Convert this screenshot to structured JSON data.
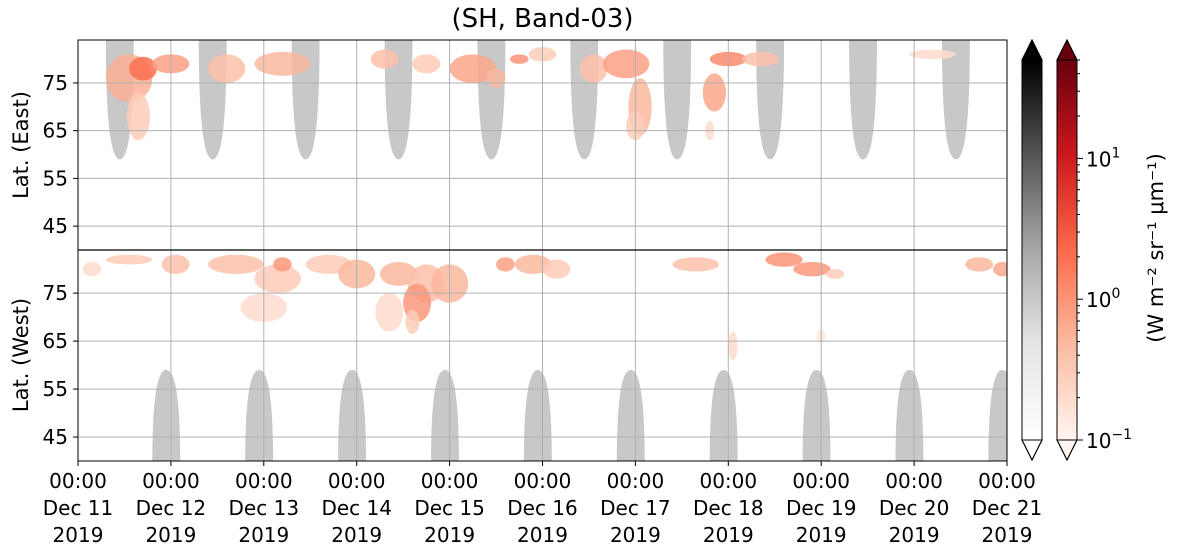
{
  "chart_data": {
    "type": "heatmap",
    "title": "(SH, Band-03)",
    "x_ticks": [
      {
        "time": "00:00",
        "date": "Dec 11",
        "year": "2019"
      },
      {
        "time": "00:00",
        "date": "Dec 12",
        "year": "2019"
      },
      {
        "time": "00:00",
        "date": "Dec 13",
        "year": "2019"
      },
      {
        "time": "00:00",
        "date": "Dec 14",
        "year": "2019"
      },
      {
        "time": "00:00",
        "date": "Dec 15",
        "year": "2019"
      },
      {
        "time": "00:00",
        "date": "Dec 16",
        "year": "2019"
      },
      {
        "time": "00:00",
        "date": "Dec 17",
        "year": "2019"
      },
      {
        "time": "00:00",
        "date": "Dec 18",
        "year": "2019"
      },
      {
        "time": "00:00",
        "date": "Dec 19",
        "year": "2019"
      },
      {
        "time": "00:00",
        "date": "Dec 20",
        "year": "2019"
      },
      {
        "time": "00:00",
        "date": "Dec 21",
        "year": "2019"
      }
    ],
    "x_range": [
      "2019-12-11 00:00",
      "2019-12-21 00:00"
    ],
    "panels": [
      {
        "name": "East",
        "ylabel": "Lat. (East)",
        "y_ticks": [
          "45",
          "55",
          "65",
          "75"
        ],
        "y_range": [
          40,
          84
        ]
      },
      {
        "name": "West",
        "ylabel": "Lat. (West)",
        "y_ticks": [
          "75",
          "65",
          "55",
          "45"
        ],
        "y_range": [
          84,
          40
        ]
      }
    ],
    "grid": true,
    "colorbars": [
      {
        "cmap": "Greys",
        "extend": "both"
      },
      {
        "cmap": "Reds",
        "extend": "both",
        "scale": "log",
        "ticks": [
          {
            "base": "10",
            "exp": "1",
            "value": 10
          },
          {
            "base": "10",
            "exp": "0",
            "value": 1
          },
          {
            "base": "10",
            "exp": "−1",
            "value": 0.1
          }
        ],
        "range": [
          0.1,
          50
        ]
      }
    ],
    "colorbar_label": "(W m⁻² sr⁻¹ μm⁻¹)",
    "daylight_regions": {
      "color": "#c8c8c8",
      "east_centers_days": [
        0.45,
        1.45,
        2.45,
        3.45,
        4.45,
        5.45,
        6.45,
        7.45,
        8.45,
        9.45
      ],
      "west_centers_days": [
        0.95,
        1.95,
        2.95,
        3.95,
        4.95,
        5.95,
        6.95,
        7.95,
        8.95,
        9.95
      ],
      "edge_lat": 84,
      "tip_lat": 59
    },
    "aurora_blobs": [
      {
        "panel": "East",
        "t": 0.55,
        "lat": 76,
        "dt": 0.5,
        "dlat": 10,
        "level": 0.6
      },
      {
        "panel": "East",
        "t": 0.7,
        "lat": 78,
        "dt": 0.3,
        "dlat": 5,
        "level": 2.0
      },
      {
        "panel": "East",
        "t": 0.65,
        "lat": 68,
        "dt": 0.25,
        "dlat": 10,
        "level": 0.3
      },
      {
        "panel": "East",
        "t": 1.0,
        "lat": 79,
        "dt": 0.4,
        "dlat": 4,
        "level": 0.8
      },
      {
        "panel": "East",
        "t": 1.6,
        "lat": 78,
        "dt": 0.4,
        "dlat": 6,
        "level": 0.4
      },
      {
        "panel": "East",
        "t": 2.2,
        "lat": 79,
        "dt": 0.6,
        "dlat": 5,
        "level": 0.5
      },
      {
        "panel": "East",
        "t": 3.3,
        "lat": 80,
        "dt": 0.3,
        "dlat": 4,
        "level": 0.4
      },
      {
        "panel": "East",
        "t": 3.75,
        "lat": 79,
        "dt": 0.3,
        "dlat": 4,
        "level": 0.3
      },
      {
        "panel": "East",
        "t": 4.25,
        "lat": 78,
        "dt": 0.5,
        "dlat": 6,
        "level": 0.7
      },
      {
        "panel": "East",
        "t": 4.5,
        "lat": 76,
        "dt": 0.2,
        "dlat": 4,
        "level": 0.5
      },
      {
        "panel": "East",
        "t": 4.75,
        "lat": 80,
        "dt": 0.2,
        "dlat": 2,
        "level": 1.0
      },
      {
        "panel": "East",
        "t": 5.0,
        "lat": 81,
        "dt": 0.3,
        "dlat": 3,
        "level": 0.3
      },
      {
        "panel": "East",
        "t": 5.55,
        "lat": 78,
        "dt": 0.3,
        "dlat": 6,
        "level": 0.4
      },
      {
        "panel": "East",
        "t": 5.9,
        "lat": 79,
        "dt": 0.5,
        "dlat": 6,
        "level": 0.8
      },
      {
        "panel": "East",
        "t": 6.05,
        "lat": 70,
        "dt": 0.25,
        "dlat": 12,
        "level": 0.5
      },
      {
        "panel": "East",
        "t": 6.0,
        "lat": 66,
        "dt": 0.2,
        "dlat": 6,
        "level": 0.3
      },
      {
        "panel": "East",
        "t": 7.0,
        "lat": 80,
        "dt": 0.4,
        "dlat": 3,
        "level": 1.2
      },
      {
        "panel": "East",
        "t": 6.85,
        "lat": 73,
        "dt": 0.25,
        "dlat": 8,
        "level": 0.7
      },
      {
        "panel": "East",
        "t": 6.8,
        "lat": 65,
        "dt": 0.1,
        "dlat": 4,
        "level": 0.2
      },
      {
        "panel": "East",
        "t": 7.35,
        "lat": 80,
        "dt": 0.4,
        "dlat": 3,
        "level": 0.4
      },
      {
        "panel": "East",
        "t": 9.2,
        "lat": 81,
        "dt": 0.5,
        "dlat": 2,
        "level": 0.2
      },
      {
        "panel": "West",
        "t": 0.15,
        "lat": 80,
        "dt": 0.2,
        "dlat": 3,
        "level": 0.2
      },
      {
        "panel": "West",
        "t": 0.55,
        "lat": 82,
        "dt": 0.5,
        "dlat": 2,
        "level": 0.3
      },
      {
        "panel": "West",
        "t": 1.05,
        "lat": 81,
        "dt": 0.3,
        "dlat": 4,
        "level": 0.4
      },
      {
        "panel": "West",
        "t": 1.7,
        "lat": 81,
        "dt": 0.6,
        "dlat": 4,
        "level": 0.4
      },
      {
        "panel": "West",
        "t": 2.15,
        "lat": 78,
        "dt": 0.5,
        "dlat": 6,
        "level": 0.3
      },
      {
        "panel": "West",
        "t": 2.0,
        "lat": 72,
        "dt": 0.5,
        "dlat": 6,
        "level": 0.2
      },
      {
        "panel": "West",
        "t": 2.2,
        "lat": 81,
        "dt": 0.2,
        "dlat": 3,
        "level": 0.9
      },
      {
        "panel": "West",
        "t": 2.7,
        "lat": 81,
        "dt": 0.5,
        "dlat": 4,
        "level": 0.3
      },
      {
        "panel": "West",
        "t": 3.0,
        "lat": 79,
        "dt": 0.4,
        "dlat": 6,
        "level": 0.5
      },
      {
        "panel": "West",
        "t": 3.45,
        "lat": 79,
        "dt": 0.4,
        "dlat": 5,
        "level": 0.5
      },
      {
        "panel": "West",
        "t": 3.35,
        "lat": 71,
        "dt": 0.3,
        "dlat": 8,
        "level": 0.2
      },
      {
        "panel": "West",
        "t": 3.75,
        "lat": 77,
        "dt": 0.4,
        "dlat": 8,
        "level": 0.4
      },
      {
        "panel": "West",
        "t": 3.65,
        "lat": 73,
        "dt": 0.3,
        "dlat": 8,
        "level": 0.9
      },
      {
        "panel": "West",
        "t": 3.6,
        "lat": 69,
        "dt": 0.15,
        "dlat": 5,
        "level": 0.3
      },
      {
        "panel": "West",
        "t": 4.0,
        "lat": 77,
        "dt": 0.4,
        "dlat": 8,
        "level": 0.5
      },
      {
        "panel": "West",
        "t": 4.9,
        "lat": 81,
        "dt": 0.4,
        "dlat": 4,
        "level": 0.5
      },
      {
        "panel": "West",
        "t": 4.6,
        "lat": 81,
        "dt": 0.2,
        "dlat": 3,
        "level": 0.8
      },
      {
        "panel": "West",
        "t": 5.15,
        "lat": 80,
        "dt": 0.3,
        "dlat": 4,
        "level": 0.3
      },
      {
        "panel": "West",
        "t": 6.65,
        "lat": 81,
        "dt": 0.5,
        "dlat": 3,
        "level": 0.4
      },
      {
        "panel": "West",
        "t": 7.6,
        "lat": 82,
        "dt": 0.4,
        "dlat": 3,
        "level": 1.0
      },
      {
        "panel": "West",
        "t": 7.9,
        "lat": 80,
        "dt": 0.4,
        "dlat": 3,
        "level": 0.9
      },
      {
        "panel": "West",
        "t": 8.15,
        "lat": 79,
        "dt": 0.2,
        "dlat": 2,
        "level": 0.3
      },
      {
        "panel": "West",
        "t": 7.05,
        "lat": 64,
        "dt": 0.1,
        "dlat": 6,
        "level": 0.2
      },
      {
        "panel": "West",
        "t": 8.0,
        "lat": 66,
        "dt": 0.1,
        "dlat": 3,
        "level": 0.15
      },
      {
        "panel": "West",
        "t": 9.7,
        "lat": 81,
        "dt": 0.3,
        "dlat": 3,
        "level": 0.5
      },
      {
        "panel": "West",
        "t": 9.95,
        "lat": 80,
        "dt": 0.2,
        "dlat": 3,
        "level": 0.7
      }
    ]
  }
}
